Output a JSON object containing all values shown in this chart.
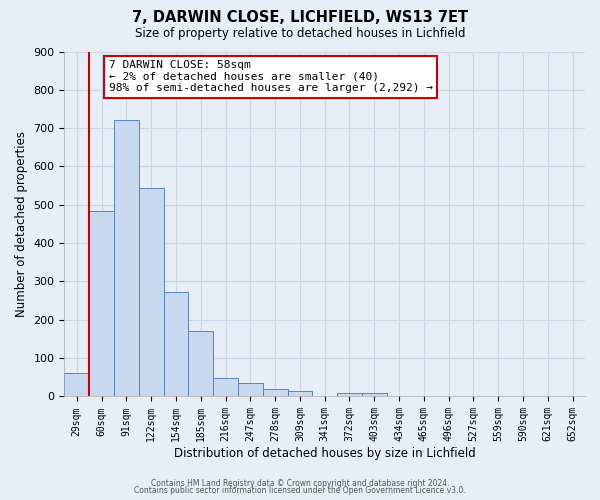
{
  "title": "7, DARWIN CLOSE, LICHFIELD, WS13 7ET",
  "subtitle": "Size of property relative to detached houses in Lichfield",
  "xlabel": "Distribution of detached houses by size in Lichfield",
  "ylabel": "Number of detached properties",
  "bar_labels": [
    "29sqm",
    "60sqm",
    "91sqm",
    "122sqm",
    "154sqm",
    "185sqm",
    "216sqm",
    "247sqm",
    "278sqm",
    "309sqm",
    "341sqm",
    "372sqm",
    "403sqm",
    "434sqm",
    "465sqm",
    "496sqm",
    "527sqm",
    "559sqm",
    "590sqm",
    "621sqm",
    "652sqm"
  ],
  "bar_values": [
    60,
    483,
    720,
    543,
    272,
    172,
    47,
    35,
    19,
    15,
    0,
    8,
    8,
    0,
    0,
    0,
    0,
    0,
    0,
    0,
    0
  ],
  "bar_color": "#c8d8ee",
  "bar_edge_color": "#5585c5",
  "ylim": [
    0,
    900
  ],
  "yticks": [
    0,
    100,
    200,
    300,
    400,
    500,
    600,
    700,
    800,
    900
  ],
  "annotation_title": "7 DARWIN CLOSE: 58sqm",
  "annotation_line1": "← 2% of detached houses are smaller (40)",
  "annotation_line2": "98% of semi-detached houses are larger (2,292) →",
  "annotation_box_color": "#ffffff",
  "annotation_border_color": "#cc0000",
  "red_line_x": 1.0,
  "grid_color": "#ccd5e5",
  "background_color": "#e8eef8",
  "plot_bg_color": "#e8eef8",
  "footer1": "Contains HM Land Registry data © Crown copyright and database right 2024.",
  "footer2": "Contains public sector information licensed under the Open Government Licence v3.0."
}
